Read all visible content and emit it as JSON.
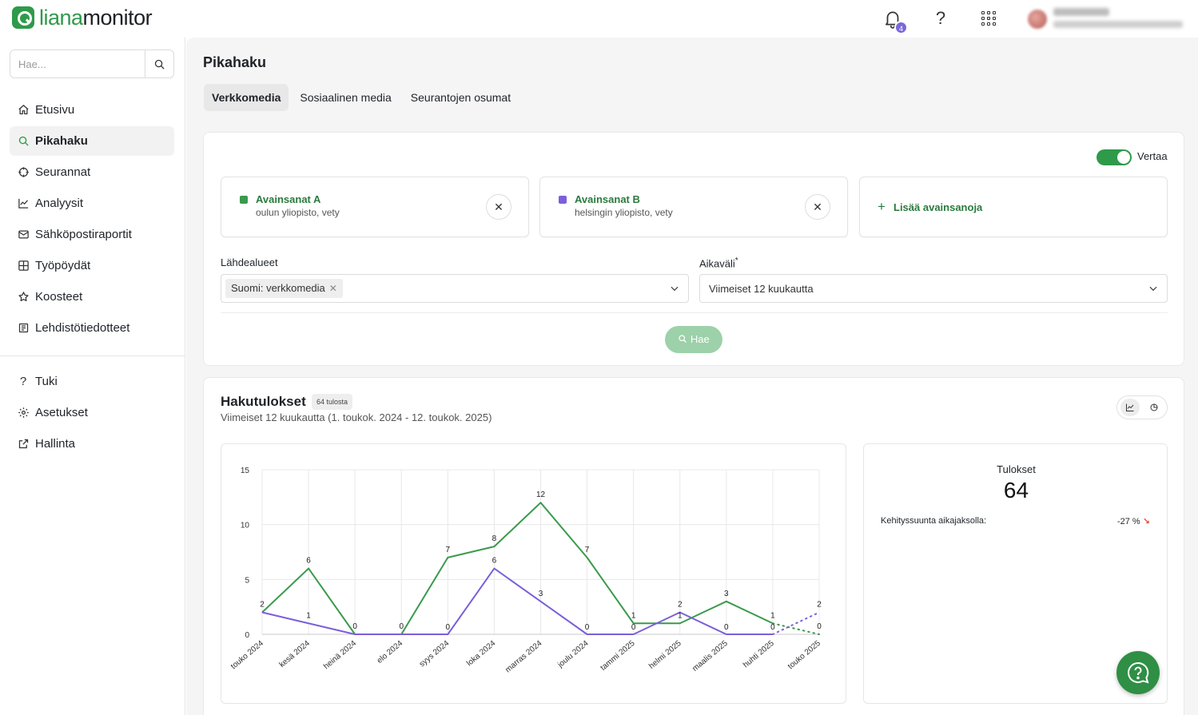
{
  "app": {
    "logo_part1": "liana",
    "logo_part2": "monitor"
  },
  "topbar": {
    "notifications_count": "4",
    "help_label": "?"
  },
  "sidebar": {
    "search_placeholder": "Hae...",
    "items": [
      {
        "label": "Etusivu",
        "icon": "home-icon"
      },
      {
        "label": "Pikahaku",
        "icon": "search-icon"
      },
      {
        "label": "Seurannat",
        "icon": "crosshair-icon"
      },
      {
        "label": "Analyysit",
        "icon": "line-chart-icon"
      },
      {
        "label": "Sähköpostiraportit",
        "icon": "mail-icon"
      },
      {
        "label": "Työpöydät",
        "icon": "grid-icon"
      },
      {
        "label": "Koosteet",
        "icon": "star-icon"
      },
      {
        "label": "Lehdistötiedotteet",
        "icon": "newspaper-icon"
      }
    ],
    "bottom_items": [
      {
        "label": "Tuki",
        "icon": "question-icon"
      },
      {
        "label": "Asetukset",
        "icon": "gear-icon"
      },
      {
        "label": "Hallinta",
        "icon": "external-link-icon"
      }
    ],
    "active": "Pikahaku"
  },
  "main": {
    "title": "Pikahaku",
    "tabs": [
      {
        "label": "Verkkomedia",
        "active": true
      },
      {
        "label": "Sosiaalinen media",
        "active": false
      },
      {
        "label": "Seurantojen osumat",
        "active": false
      }
    ]
  },
  "search": {
    "compare_label": "Vertaa",
    "compare_on": true,
    "keywords": [
      {
        "name": "Avainsanat A",
        "terms": "oulun yliopisto, vety",
        "color": "#3a9a4c"
      },
      {
        "name": "Avainsanat B",
        "terms": "helsingin yliopisto, vety",
        "color": "#7b5fd9"
      }
    ],
    "add_keywords_label": "Lisää avainsanoja",
    "sources_label": "Lähdealueet",
    "sources_chip": "Suomi: verkkomedia",
    "timespan_label": "Aikaväli",
    "timespan_required": "*",
    "timespan_value": "Viimeiset 12 kuukautta",
    "search_button": "Hae"
  },
  "results": {
    "title": "Hakutulokset",
    "count_badge": "64 tulosta",
    "subtitle": "Viimeiset 12 kuukautta (1. toukok. 2024 - 12. toukok. 2025)",
    "stats": {
      "label": "Tulokset",
      "value": "64",
      "trend_label": "Kehityssuunta aikajaksolla:",
      "trend_value": "-27 %",
      "trend_arrow": "↘"
    }
  },
  "chart_data": {
    "type": "line",
    "categories": [
      "touko 2024",
      "kesä 2024",
      "heinä 2024",
      "elo 2024",
      "syys 2024",
      "loka 2024",
      "marras 2024",
      "joulu 2024",
      "tammi 2025",
      "helmi 2025",
      "maalis 2025",
      "huhti 2025",
      "touko 2025"
    ],
    "yticks": [
      0,
      5,
      10,
      15
    ],
    "ylim": [
      0,
      15
    ],
    "grid": true,
    "series": [
      {
        "name": "Avainsanat A",
        "color": "#3a9a4c",
        "values": [
          2,
          6,
          0,
          0,
          7,
          8,
          12,
          7,
          1,
          1,
          3,
          1,
          0
        ],
        "partial_last": true
      },
      {
        "name": "Avainsanat B",
        "color": "#7b5fd9",
        "values": [
          2,
          1,
          0,
          0,
          0,
          6,
          3,
          0,
          0,
          2,
          0,
          0,
          2
        ],
        "partial_last": true
      }
    ],
    "labels": {
      "A": [
        "2",
        "6",
        "0",
        "0",
        "7",
        "8",
        "12",
        "7",
        "1",
        "1",
        "3",
        "1",
        "0"
      ],
      "B": [
        "",
        "1",
        "",
        "",
        "0",
        "6",
        "3",
        "0",
        "0",
        "2",
        "0",
        "0",
        "2"
      ]
    }
  }
}
